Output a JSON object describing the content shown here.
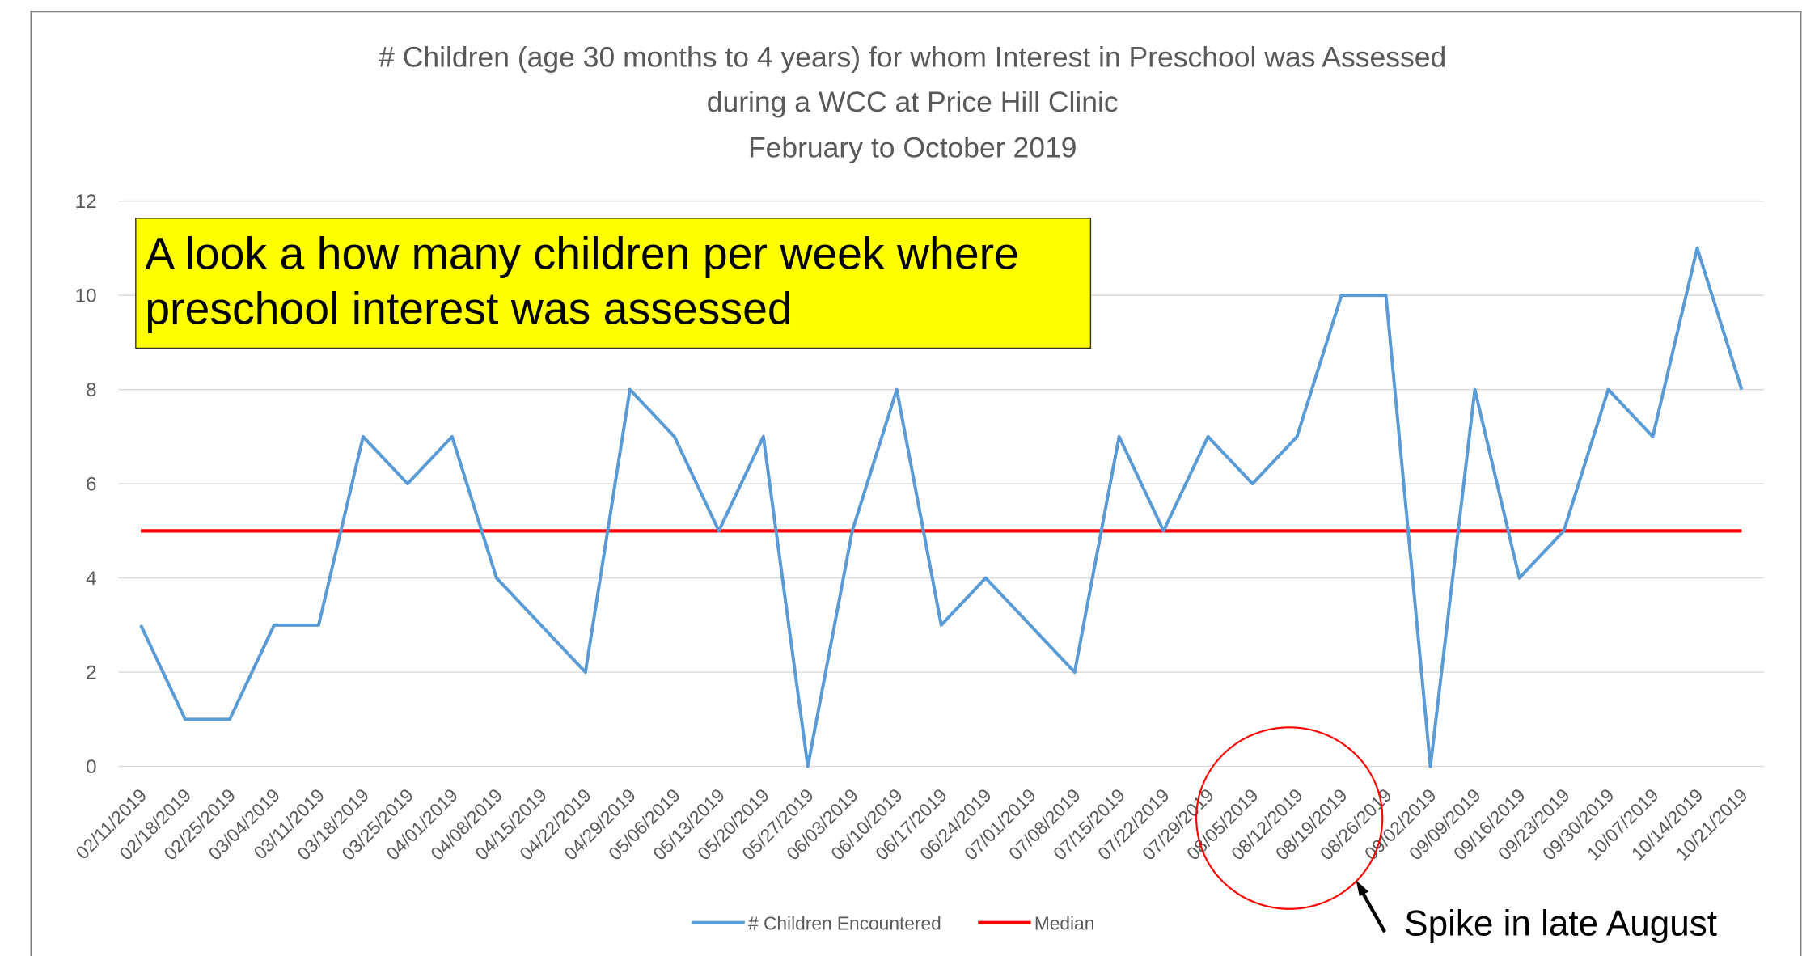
{
  "chart_data": {
    "type": "line",
    "title": [
      "# Children (age 30 months to 4 years) for whom Interest in Preschool was Assessed",
      "during a WCC at Price Hill Clinic"
    ],
    "subtitle": "February to October 2019",
    "categories": [
      "02/11/2019",
      "02/18/2019",
      "02/25/2019",
      "03/04/2019",
      "03/11/2019",
      "03/18/2019",
      "03/25/2019",
      "04/01/2019",
      "04/08/2019",
      "04/15/2019",
      "04/22/2019",
      "04/29/2019",
      "05/06/2019",
      "05/13/2019",
      "05/20/2019",
      "05/27/2019",
      "06/03/2019",
      "06/10/2019",
      "06/17/2019",
      "06/24/2019",
      "07/01/2019",
      "07/08/2019",
      "07/15/2019",
      "07/22/2019",
      "07/29/2019",
      "08/05/2019",
      "08/12/2019",
      "08/19/2019",
      "08/26/2019",
      "09/02/2019",
      "09/09/2019",
      "09/16/2019",
      "09/23/2019",
      "09/30/2019",
      "10/07/2019",
      "10/14/2019",
      "10/21/2019"
    ],
    "series": [
      {
        "name": "# Children Encountered",
        "color": "#5b9bd5",
        "values": [
          3,
          1,
          1,
          3,
          3,
          7,
          6,
          7,
          4,
          3,
          2,
          8,
          7,
          5,
          7,
          0,
          5,
          8,
          3,
          4,
          3,
          2,
          7,
          5,
          7,
          6,
          7,
          10,
          10,
          0,
          8,
          4,
          5,
          8,
          7,
          11,
          8
        ]
      },
      {
        "name": "Median",
        "color": "#ff0000",
        "values": [
          5,
          5,
          5,
          5,
          5,
          5,
          5,
          5,
          5,
          5,
          5,
          5,
          5,
          5,
          5,
          5,
          5,
          5,
          5,
          5,
          5,
          5,
          5,
          5,
          5,
          5,
          5,
          5,
          5,
          5,
          5,
          5,
          5,
          5,
          5,
          5,
          5
        ]
      }
    ],
    "ylim": [
      0,
      12
    ],
    "yticks": [
      0,
      2,
      4,
      6,
      8,
      10,
      12
    ],
    "grid": true,
    "legend": "bottom",
    "annotations": [
      "A look a how many children per week where",
      "preschool interest was assessed",
      "Spike in late August"
    ]
  }
}
